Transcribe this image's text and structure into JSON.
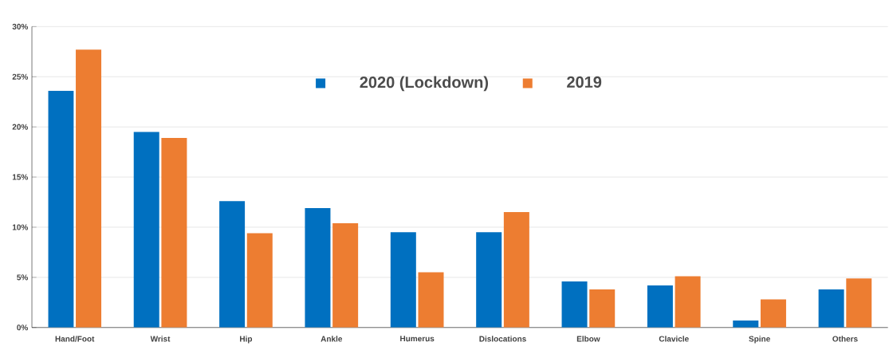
{
  "chart_data": {
    "type": "bar",
    "categories": [
      "Hand/Foot",
      "Wrist",
      "Hip",
      "Ankle",
      "Humerus",
      "Dislocations",
      "Elbow",
      "Clavicle",
      "Spine",
      "Others"
    ],
    "series": [
      {
        "name": "2020 (Lockdown)",
        "color": "#0070c0",
        "values": [
          23.6,
          19.5,
          12.6,
          11.9,
          9.5,
          9.5,
          4.6,
          4.2,
          0.7,
          3.8
        ]
      },
      {
        "name": "2019",
        "color": "#ed7d31",
        "values": [
          27.7,
          18.9,
          9.4,
          10.4,
          5.5,
          11.5,
          3.8,
          5.1,
          2.8,
          4.9
        ]
      }
    ],
    "ylim": [
      0,
      30
    ],
    "yticks": [
      {
        "value": 0,
        "label": "0%"
      },
      {
        "value": 5,
        "label": "5%"
      },
      {
        "value": 10,
        "label": "10%"
      },
      {
        "value": 15,
        "label": "15%"
      },
      {
        "value": 20,
        "label": "20%"
      },
      {
        "value": 25,
        "label": "25%"
      },
      {
        "value": 30,
        "label": "30%"
      }
    ],
    "grid": "y",
    "legend": "top"
  }
}
